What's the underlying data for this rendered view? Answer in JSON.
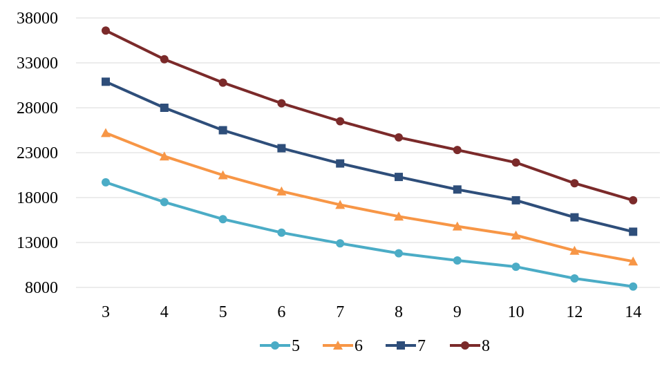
{
  "chart_data": {
    "type": "line",
    "title": "",
    "xlabel": "",
    "ylabel": "",
    "categories": [
      "3",
      "4",
      "5",
      "6",
      "7",
      "8",
      "9",
      "10",
      "12",
      "14"
    ],
    "ylim": [
      8000,
      38000
    ],
    "yticks": [
      8000,
      13000,
      18000,
      23000,
      28000,
      33000,
      38000
    ],
    "yticks_labels": [
      "8000",
      "13000",
      "18000",
      "23000",
      "28000",
      "33000",
      "38000"
    ],
    "grid": true,
    "legend": "bottom",
    "series": [
      {
        "name": "5",
        "color": "#4bacc6",
        "marker": "circle",
        "values": [
          19700,
          17500,
          15600,
          14100,
          12900,
          11800,
          11000,
          10300,
          9000,
          8100
        ]
      },
      {
        "name": "6",
        "color": "#f79646",
        "marker": "triangle",
        "values": [
          25200,
          22600,
          20500,
          18700,
          17200,
          15900,
          14800,
          13800,
          12100,
          10900
        ]
      },
      {
        "name": "7",
        "color": "#2e4e7a",
        "marker": "square",
        "values": [
          30900,
          28000,
          25500,
          23500,
          21800,
          20300,
          18900,
          17700,
          15800,
          14200
        ]
      },
      {
        "name": "8",
        "color": "#7b2a2a",
        "marker": "circle",
        "values": [
          36600,
          33400,
          30800,
          28500,
          26500,
          24700,
          23300,
          21900,
          19600,
          17700
        ]
      }
    ]
  }
}
